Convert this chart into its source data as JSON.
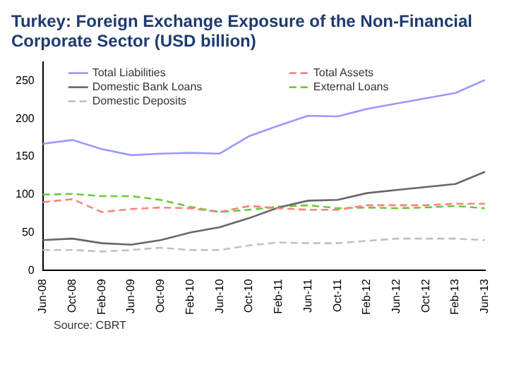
{
  "chart_data": {
    "type": "line",
    "title": "Turkey: Foreign Exchange Exposure of the Non-Financial Corporate Sector (USD billion)",
    "annotations": [
      "Source: CBRT"
    ],
    "categories": [
      "Jun-08",
      "Oct-08",
      "Feb-09",
      "Jun-09",
      "Oct-09",
      "Feb-10",
      "Jun-10",
      "Oct-10",
      "Feb-11",
      "Jun-11",
      "Oct-11",
      "Feb-12",
      "Jun-12",
      "Oct-12",
      "Feb-13",
      "Jun-13"
    ],
    "series": [
      {
        "name": "Total Liabilities",
        "color": "#9999ff",
        "line_style": "solid",
        "values": [
          167,
          172,
          160,
          152,
          154,
          155,
          154,
          177,
          191,
          204,
          203,
          213,
          220,
          227,
          234,
          251
        ]
      },
      {
        "name": "Total Assets",
        "color": "#ff8080",
        "line_style": "dashed",
        "values": [
          90,
          94,
          77,
          81,
          83,
          82,
          77,
          85,
          82,
          80,
          80,
          86,
          86,
          86,
          88,
          88
        ]
      },
      {
        "name": "Domestic Bank Loans",
        "color": "#666666",
        "line_style": "solid",
        "values": [
          40,
          42,
          36,
          34,
          40,
          50,
          57,
          69,
          83,
          92,
          93,
          102,
          106,
          110,
          114,
          130
        ]
      },
      {
        "name": "External Loans",
        "color": "#66cc33",
        "line_style": "dashed",
        "values": [
          100,
          101,
          98,
          98,
          93,
          84,
          77,
          80,
          84,
          86,
          82,
          83,
          82,
          83,
          85,
          82
        ]
      },
      {
        "name": "Domestic Deposits",
        "color": "#c0c0c0",
        "line_style": "dashed",
        "values": [
          27,
          27,
          25,
          27,
          30,
          27,
          27,
          33,
          37,
          36,
          36,
          39,
          42,
          42,
          42,
          40
        ]
      }
    ],
    "ylim": [
      0,
      275
    ],
    "yticks": [
      0,
      50,
      100,
      150,
      200,
      250
    ],
    "grid": false,
    "legend": "top",
    "marker": "none"
  }
}
